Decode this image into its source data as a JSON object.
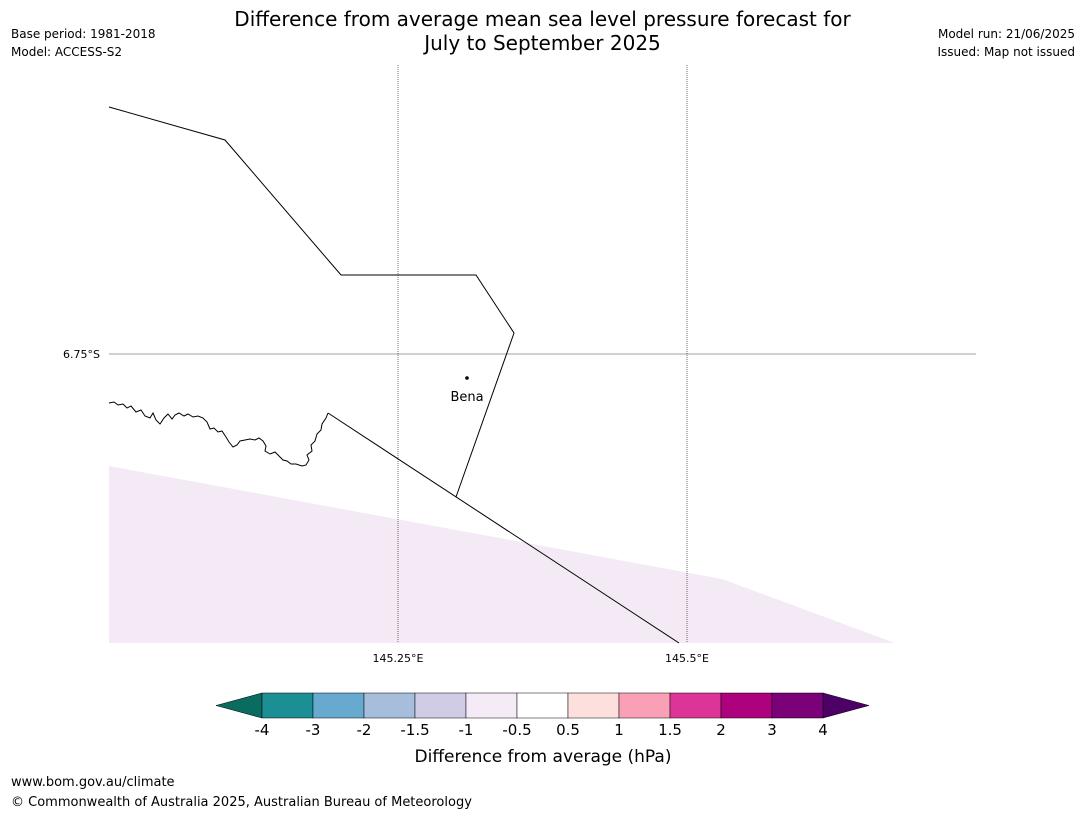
{
  "header": {
    "title_line1": "Difference from average mean sea level pressure forecast for",
    "title_line2": "July to September 2025",
    "base_period": "Base period: 1981-2018",
    "model": "Model: ACCESS-S2",
    "model_run": "Model run: 21/06/2025",
    "issued": "Issued: Map not issued"
  },
  "map": {
    "latitude_labels": [
      "6.75°S"
    ],
    "longitude_labels": [
      "145.25°E",
      "145.5°E"
    ],
    "places": [
      {
        "name": "Bena"
      }
    ],
    "shaded_region_category": "-1 to -0.5"
  },
  "colorbar": {
    "title": "Difference from average (hPa)",
    "tick_labels": [
      "-4",
      "-3",
      "-2",
      "-1.5",
      "-1",
      "-0.5",
      "0.5",
      "1",
      "1.5",
      "2",
      "3",
      "4"
    ],
    "colors": {
      "below_min": "#0a6b5f",
      "bins": [
        "#1b8f94",
        "#68a9cf",
        "#a6bddb",
        "#d0cce6",
        "#f5ebf7",
        "#ffffff",
        "#fde0dd",
        "#f9a0b6",
        "#dd3497",
        "#ae017e",
        "#7a0177"
      ],
      "above_max": "#4d0066"
    }
  },
  "footer": {
    "url": "www.bom.gov.au/climate",
    "copyright": "© Commonwealth of Australia 2025, Australian Bureau of Meteorology"
  }
}
